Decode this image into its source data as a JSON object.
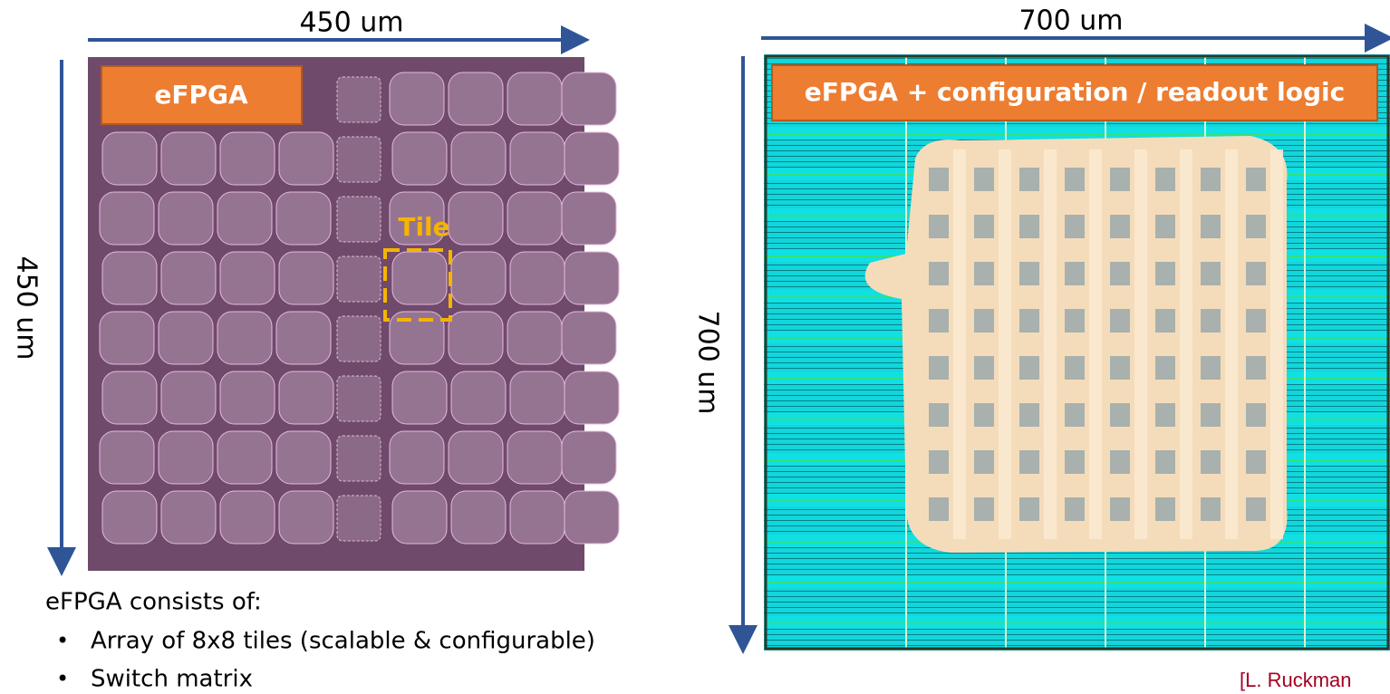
{
  "left_panel": {
    "width_label": "450 um",
    "height_label": "450 um",
    "badge": "eFPGA",
    "tile_label": "Tile"
  },
  "right_panel": {
    "width_label": "700 um",
    "height_label": "700 um",
    "badge": "eFPGA + configuration / readout logic"
  },
  "description": {
    "heading": "eFPGA consists of:",
    "bullets": [
      "Array of 8x8 tiles (scalable & configurable)",
      "Switch matrix"
    ]
  },
  "citation": "[L. Ruckman"
}
